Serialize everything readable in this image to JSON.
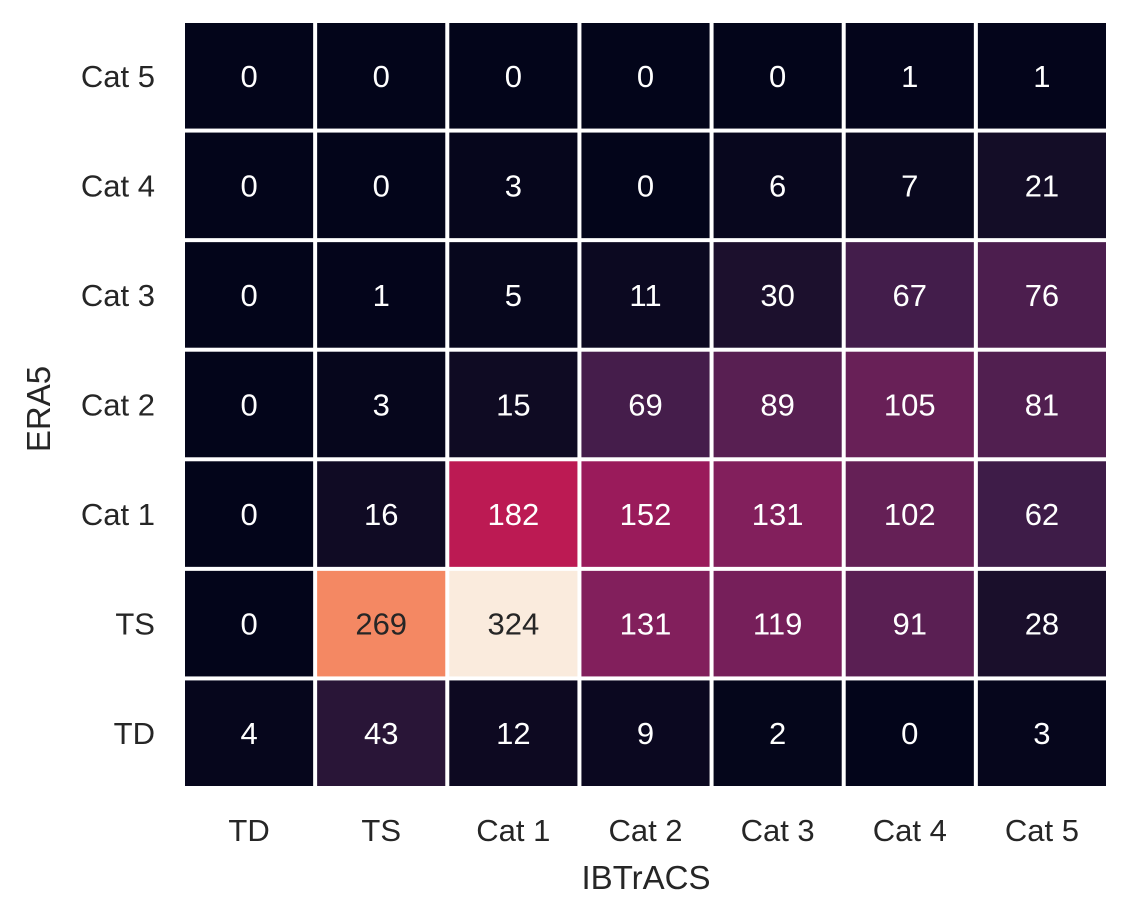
{
  "chart_data": {
    "type": "heatmap",
    "x_categories": [
      "TD",
      "TS",
      "Cat 1",
      "Cat 2",
      "Cat 3",
      "Cat 4",
      "Cat 5"
    ],
    "y_categories": [
      "Cat 5",
      "Cat 4",
      "Cat 3",
      "Cat 2",
      "Cat 1",
      "TS",
      "TD"
    ],
    "values": [
      [
        0,
        0,
        0,
        0,
        0,
        1,
        1
      ],
      [
        0,
        0,
        3,
        0,
        6,
        7,
        21
      ],
      [
        0,
        1,
        5,
        11,
        30,
        67,
        76
      ],
      [
        0,
        3,
        15,
        69,
        89,
        105,
        81
      ],
      [
        0,
        16,
        182,
        152,
        131,
        102,
        62
      ],
      [
        0,
        269,
        324,
        131,
        119,
        91,
        28
      ],
      [
        4,
        43,
        12,
        9,
        2,
        0,
        3
      ]
    ],
    "xlabel": "IBTrACS",
    "ylabel": "ERA5",
    "colormap": "rocket",
    "vmin": 0,
    "vmax": 324,
    "colorbar": false,
    "annotations": true,
    "cell_separator_color": "#ffffff"
  }
}
